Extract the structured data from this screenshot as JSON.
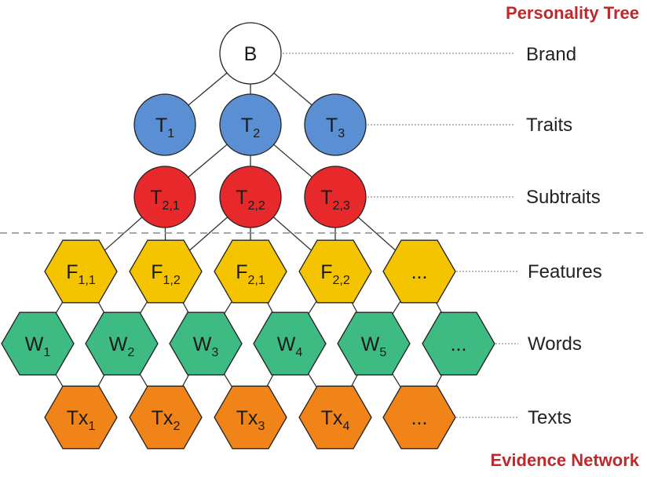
{
  "headings": {
    "top": "Personality Tree",
    "bottom": "Evidence Network"
  },
  "rows": {
    "brand": "Brand",
    "traits": "Traits",
    "subtraits": "Subtraits",
    "features": "Features",
    "words": "Words",
    "texts": "Texts"
  },
  "nodes": {
    "brand": {
      "main": "B",
      "sub": ""
    },
    "traits": [
      {
        "main": "T",
        "sub": "1"
      },
      {
        "main": "T",
        "sub": "2"
      },
      {
        "main": "T",
        "sub": "3"
      }
    ],
    "subtraits": [
      {
        "main": "T",
        "sub": "2,1"
      },
      {
        "main": "T",
        "sub": "2,2"
      },
      {
        "main": "T",
        "sub": "2,3"
      }
    ],
    "features": [
      {
        "main": "F",
        "sub": "1,1"
      },
      {
        "main": "F",
        "sub": "1,2"
      },
      {
        "main": "F",
        "sub": "2,1"
      },
      {
        "main": "F",
        "sub": "2,2"
      },
      {
        "main": "...",
        "sub": ""
      }
    ],
    "words": [
      {
        "main": "W",
        "sub": "1"
      },
      {
        "main": "W",
        "sub": "2"
      },
      {
        "main": "W",
        "sub": "3"
      },
      {
        "main": "W",
        "sub": "4"
      },
      {
        "main": "W",
        "sub": "5"
      },
      {
        "main": "...",
        "sub": ""
      }
    ],
    "texts": [
      {
        "main": "Tx",
        "sub": "1"
      },
      {
        "main": "Tx",
        "sub": "2"
      },
      {
        "main": "Tx",
        "sub": "3"
      },
      {
        "main": "Tx",
        "sub": "4"
      },
      {
        "main": "...",
        "sub": ""
      }
    ]
  },
  "colors": {
    "brand_fill": "#ffffff",
    "trait_fill": "#5b8fd3",
    "subtrait_fill": "#e8292b",
    "feature_fill": "#f5c400",
    "word_fill": "#3dbb82",
    "text_fill": "#f08418",
    "heading_red": "#c0292b"
  }
}
